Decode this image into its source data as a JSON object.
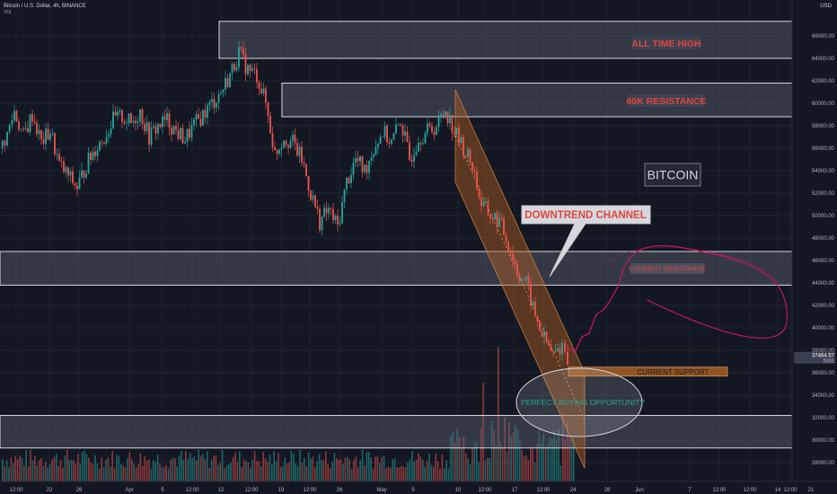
{
  "header": {
    "symbol": "Bitcoin / U.S. Dollar, 4h, BINANCE",
    "vol_label": "Vol",
    "currency": "USD"
  },
  "colors": {
    "background": "#131722",
    "up": "#26a69a",
    "down": "#ef5350",
    "zone_fill": "#5d6170",
    "zone_border": "#d6d8de",
    "label_red": "#e0463f",
    "channel_fill": "#b0601f",
    "support_fill": "#a75f24",
    "projection": "#c2185b",
    "price_tag": "#3a3f50"
  },
  "chart_data": {
    "type": "candlestick",
    "x_ticks": [
      "12:00",
      "22",
      "26",
      "Apr",
      "5",
      "12:00",
      "12",
      "12:00",
      "19",
      "12:00",
      "26",
      "May",
      "5",
      "10",
      "12:00",
      "17",
      "12:00",
      "24",
      "28",
      "Jun",
      "7",
      "12:00",
      "12:00",
      "14",
      "12:00",
      "21"
    ],
    "y_ticks": [
      "66000.00",
      "64000.00",
      "62000.00",
      "60000.00",
      "58000.00",
      "56000.00",
      "54000.00",
      "52000.00",
      "50000.00",
      "48000.00",
      "46000.00",
      "44000.00",
      "42000.00",
      "40000.00",
      "38000.00",
      "36000.00",
      "34000.00",
      "32000.00",
      "30000.00",
      "28000.00"
    ],
    "ylim": [
      26500,
      67800
    ],
    "current_price": "37464.57",
    "current_price_sub": "23:01",
    "price_path": [
      {
        "x": 0,
        "y": 56000
      },
      {
        "x": 8,
        "y": 57200
      },
      {
        "x": 16,
        "y": 59300
      },
      {
        "x": 26,
        "y": 57000
      },
      {
        "x": 36,
        "y": 59000
      },
      {
        "x": 46,
        "y": 56500
      },
      {
        "x": 56,
        "y": 57500
      },
      {
        "x": 66,
        "y": 54500
      },
      {
        "x": 76,
        "y": 53500
      },
      {
        "x": 86,
        "y": 52500
      },
      {
        "x": 96,
        "y": 54500
      },
      {
        "x": 106,
        "y": 56000
      },
      {
        "x": 116,
        "y": 57000
      },
      {
        "x": 126,
        "y": 58500
      },
      {
        "x": 136,
        "y": 58800
      },
      {
        "x": 146,
        "y": 58200
      },
      {
        "x": 156,
        "y": 59300
      },
      {
        "x": 166,
        "y": 57000
      },
      {
        "x": 176,
        "y": 58000
      },
      {
        "x": 186,
        "y": 58500
      },
      {
        "x": 196,
        "y": 57500
      },
      {
        "x": 206,
        "y": 56800
      },
      {
        "x": 216,
        "y": 58000
      },
      {
        "x": 226,
        "y": 59000
      },
      {
        "x": 236,
        "y": 60000
      },
      {
        "x": 246,
        "y": 61000
      },
      {
        "x": 256,
        "y": 62500
      },
      {
        "x": 266,
        "y": 64500
      },
      {
        "x": 276,
        "y": 63000
      },
      {
        "x": 286,
        "y": 62500
      },
      {
        "x": 296,
        "y": 60000
      },
      {
        "x": 306,
        "y": 55500
      },
      {
        "x": 316,
        "y": 57000
      },
      {
        "x": 326,
        "y": 56500
      },
      {
        "x": 336,
        "y": 55000
      },
      {
        "x": 346,
        "y": 52000
      },
      {
        "x": 356,
        "y": 49500
      },
      {
        "x": 366,
        "y": 50500
      },
      {
        "x": 376,
        "y": 49000
      },
      {
        "x": 386,
        "y": 53000
      },
      {
        "x": 396,
        "y": 55000
      },
      {
        "x": 406,
        "y": 54000
      },
      {
        "x": 416,
        "y": 56000
      },
      {
        "x": 426,
        "y": 57500
      },
      {
        "x": 436,
        "y": 56500
      },
      {
        "x": 446,
        "y": 58500
      },
      {
        "x": 456,
        "y": 55000
      },
      {
        "x": 466,
        "y": 57000
      },
      {
        "x": 476,
        "y": 57500
      },
      {
        "x": 486,
        "y": 58000
      },
      {
        "x": 496,
        "y": 59500
      },
      {
        "x": 506,
        "y": 57500
      },
      {
        "x": 516,
        "y": 56000
      },
      {
        "x": 526,
        "y": 54500
      },
      {
        "x": 536,
        "y": 51000
      },
      {
        "x": 546,
        "y": 50000
      },
      {
        "x": 556,
        "y": 49500
      },
      {
        "x": 566,
        "y": 47500
      },
      {
        "x": 576,
        "y": 45000
      },
      {
        "x": 586,
        "y": 44000
      },
      {
        "x": 596,
        "y": 41000
      },
      {
        "x": 606,
        "y": 39000
      },
      {
        "x": 616,
        "y": 37500
      },
      {
        "x": 626,
        "y": 38500
      },
      {
        "x": 632,
        "y": 37464
      }
    ],
    "zones": [
      {
        "name": "ALL TIME HIGH",
        "from": 64000,
        "to": 67300,
        "x0": 244,
        "x1": 882
      },
      {
        "name": "60K RESISTANCE",
        "from": 58800,
        "to": 61800,
        "x0": 314,
        "x1": 882
      },
      {
        "name": "",
        "from": 43800,
        "to": 46800,
        "x0": 0,
        "x1": 882
      },
      {
        "name": "",
        "from": 29300,
        "to": 32200,
        "x0": 0,
        "x1": 882
      }
    ],
    "channel": {
      "upper_start": {
        "x": 507,
        "y": 61200
      },
      "upper_end": {
        "x": 651,
        "y": 36000
      },
      "lower_start": {
        "x": 507,
        "y": 53000
      },
      "lower_end": {
        "x": 651,
        "y": 27500
      }
    },
    "annotations": {
      "all_time_high": "ALL TIME HIGH",
      "resistance_60k": "60K RESISTANCE",
      "bitcoin": "BITCOIN",
      "downtrend_channel": "DOWNTREND CHANNEL",
      "current_resistance": "CURRENT RESISTANCE",
      "current_support": "CURRENT SUPPORT",
      "perfect_buying": "PERFECT BUYING OPPORTUNITY"
    },
    "support_box": {
      "from": 35700,
      "to": 36500,
      "x0": 633,
      "x1": 810
    },
    "projection_path": [
      {
        "x": 632,
        "y": 38300
      },
      {
        "x": 640,
        "y": 37800
      },
      {
        "x": 648,
        "y": 39200
      },
      {
        "x": 656,
        "y": 39500
      },
      {
        "x": 664,
        "y": 41200
      },
      {
        "x": 672,
        "y": 41600
      },
      {
        "x": 680,
        "y": 42500
      },
      {
        "x": 690,
        "y": 44000
      }
    ],
    "grid": true,
    "legend": "none"
  }
}
